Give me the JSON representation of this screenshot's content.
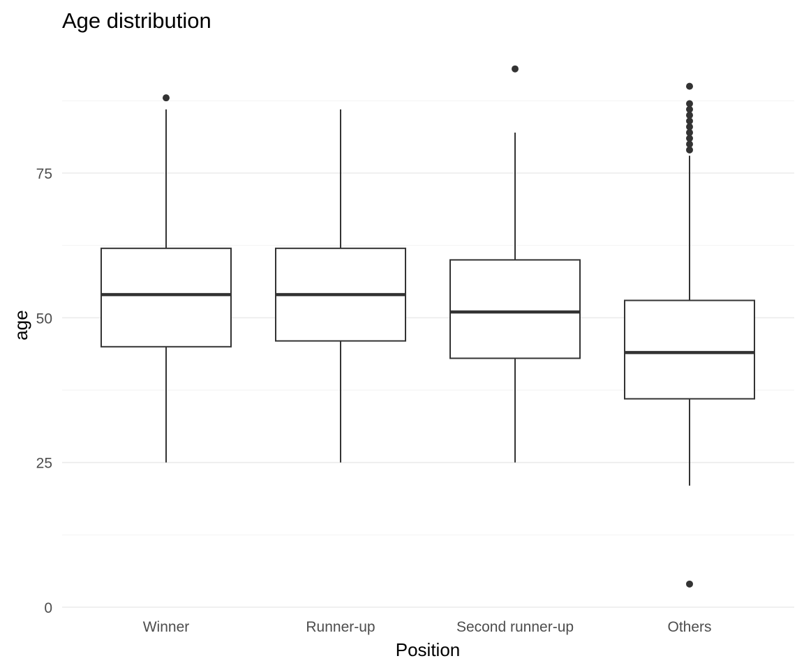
{
  "chart_data": {
    "type": "boxplot",
    "title": "Age distribution",
    "xlabel": "Position",
    "ylabel": "age",
    "ylim": [
      -1,
      93
    ],
    "y_ticks": [
      0,
      25,
      50,
      75
    ],
    "y_tick_labels": [
      "0",
      "25",
      "50",
      "75"
    ],
    "y_minor_ticks": [
      12.5,
      37.5,
      62.5,
      87.5
    ],
    "grid": true,
    "legend": "none",
    "categories": [
      "Winner",
      "Runner-up",
      "Second runner-up",
      "Others"
    ],
    "boxes": [
      {
        "category": "Winner",
        "whisker_low": 25,
        "q1": 45,
        "median": 54,
        "q3": 62,
        "whisker_high": 86,
        "outliers": [
          88
        ]
      },
      {
        "category": "Runner-up",
        "whisker_low": 25,
        "q1": 46,
        "median": 54,
        "q3": 62,
        "whisker_high": 86,
        "outliers": []
      },
      {
        "category": "Second runner-up",
        "whisker_low": 25,
        "q1": 43,
        "median": 51,
        "q3": 60,
        "whisker_high": 82,
        "outliers": [
          93
        ]
      },
      {
        "category": "Others",
        "whisker_low": 21,
        "q1": 36,
        "median": 44,
        "q3": 53,
        "whisker_high": 78,
        "outliers": [
          4,
          79,
          80,
          81,
          82,
          83,
          84,
          85,
          86,
          87,
          90
        ]
      }
    ],
    "colors": {
      "box_line": "#333333",
      "box_fill": "#ffffff",
      "grid": "#ebebeb",
      "tick_text": "#4d4d4d"
    }
  }
}
